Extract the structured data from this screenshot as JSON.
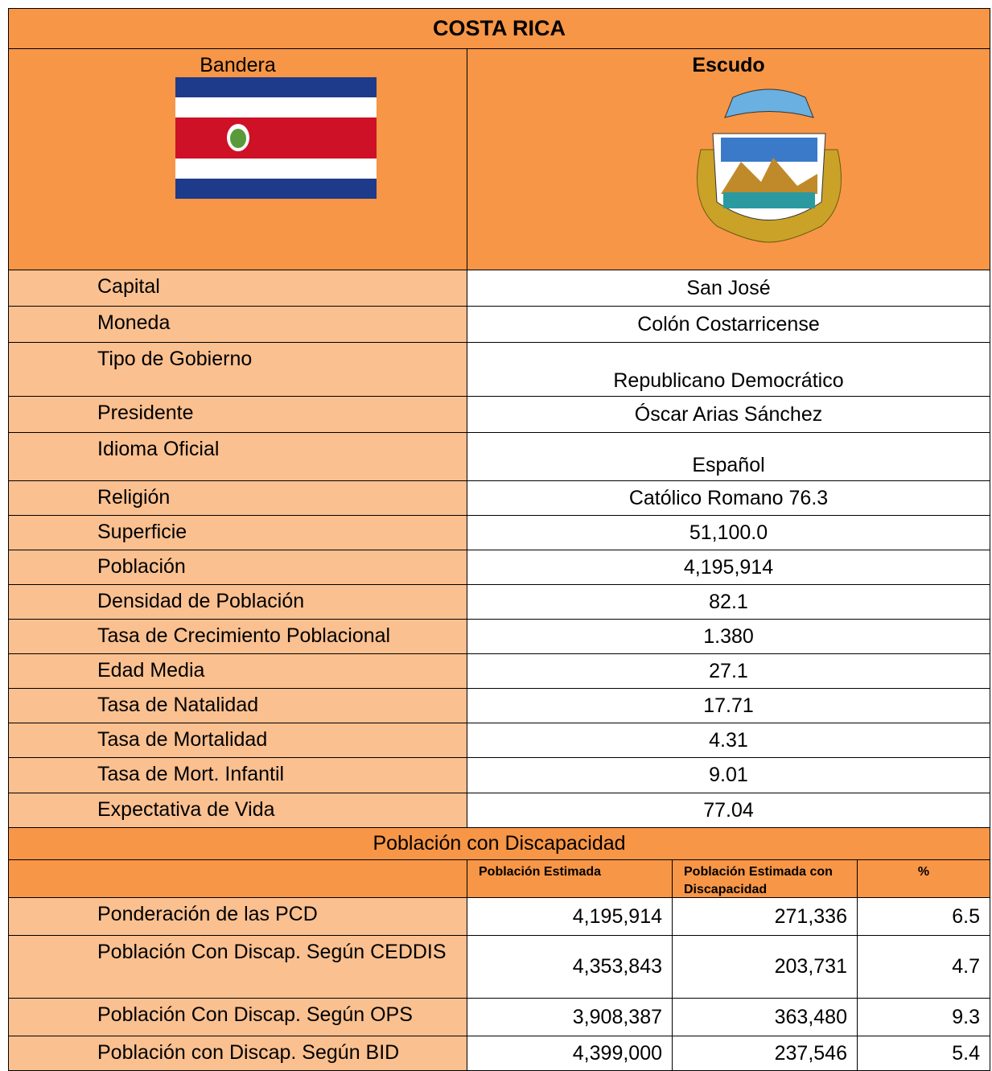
{
  "title": "COSTA RICA",
  "header": {
    "flag_label": "Bandera",
    "shield_label": "Escudo"
  },
  "rows": [
    [
      "Capital",
      "San José"
    ],
    [
      "Moneda",
      "Colón Costarricense"
    ],
    [
      "Tipo de Gobierno",
      "Republicano Democrático"
    ],
    [
      "Presidente",
      "Óscar Arias Sánchez"
    ],
    [
      "Idioma Oficial",
      "Español"
    ],
    [
      "Religión",
      "Católico Romano 76.3"
    ],
    [
      "Superficie",
      "51,100.0"
    ],
    [
      "Población",
      "4,195,914"
    ],
    [
      "Densidad de Población",
      "82.1"
    ],
    [
      "Tasa de Crecimiento Poblacional",
      "1.380"
    ],
    [
      "Edad Media",
      "27.1"
    ],
    [
      "Tasa de Natalidad",
      "17.71"
    ],
    [
      "Tasa de Mortalidad",
      "4.31"
    ],
    [
      "Tasa de Mort. Infantil",
      "9.01"
    ],
    [
      "Expectativa de Vida",
      "77.04"
    ]
  ],
  "disability": {
    "title": "Población con Discapacidad",
    "columns": [
      "Población Estimada",
      "Población Estimada con Discapacidad",
      "%"
    ],
    "rows": [
      [
        "Ponderación de las PCD",
        "4,195,914",
        "271,336",
        "6.5"
      ],
      [
        "Población Con Discap. Según CEDDIS",
        "4,353,843",
        "203,731",
        "4.7"
      ],
      [
        "Población Con Discap. Según OPS",
        "3,908,387",
        "363,480",
        "9.3"
      ],
      [
        "Población con Discap. Según BID",
        "4,399,000",
        "237,546",
        "5.4"
      ]
    ]
  }
}
